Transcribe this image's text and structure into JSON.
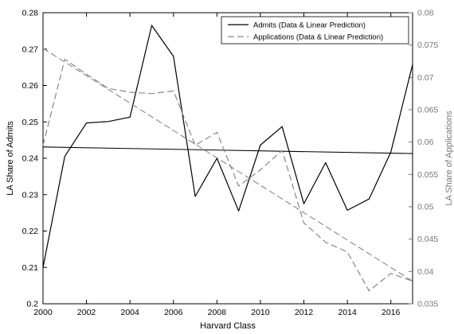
{
  "chart_data": {
    "type": "line",
    "xlabel": "Harvard Class",
    "ylabel_left": "LA Share of Admits",
    "ylabel_right": "LA Share of Applications",
    "xlim": [
      2000,
      2017
    ],
    "ylim_left": [
      0.2,
      0.28
    ],
    "ylim_right": [
      0.035,
      0.08
    ],
    "x_ticks": [
      2000,
      2002,
      2004,
      2006,
      2008,
      2010,
      2012,
      2014,
      2016
    ],
    "y_left_ticks": [
      "0.2",
      "0.21",
      "0.22",
      "0.23",
      "0.24",
      "0.25",
      "0.26",
      "0.27",
      "0.28"
    ],
    "y_right_ticks": [
      "0.035",
      "0.04",
      "0.045",
      "0.05",
      "0.055",
      "0.06",
      "0.065",
      "0.07",
      "0.075",
      "0.08"
    ],
    "grid": false,
    "legend_position": "top-right",
    "series": [
      {
        "name": "Admits (Data & Linear Prediction)",
        "axis": "left",
        "style": "solid",
        "color": "#000000",
        "x": [
          2000,
          2001,
          2002,
          2003,
          2004,
          2005,
          2006,
          2007,
          2008,
          2009,
          2010,
          2011,
          2012,
          2013,
          2014,
          2015,
          2016,
          2017
        ],
        "values": [
          0.21,
          0.2405,
          0.2497,
          0.2501,
          0.2513,
          0.2765,
          0.268,
          0.2295,
          0.24,
          0.2255,
          0.2436,
          0.2487,
          0.2275,
          0.2388,
          0.2257,
          0.2288,
          0.2417,
          0.2658
        ],
        "trend": [
          0.2431,
          0.2413
        ]
      },
      {
        "name": "Applications (Data & Linear Prediction)",
        "axis": "right",
        "style": "dashed",
        "color": "#888888",
        "x": [
          2000,
          2001,
          2002,
          2003,
          2004,
          2005,
          2006,
          2007,
          2008,
          2009,
          2010,
          2011,
          2012,
          2013,
          2014,
          2015,
          2016,
          2017
        ],
        "values": [
          0.0595,
          0.0728,
          0.0705,
          0.0683,
          0.0677,
          0.0675,
          0.0679,
          0.0595,
          0.0615,
          0.0532,
          0.0557,
          0.0587,
          0.0475,
          0.0445,
          0.043,
          0.037,
          0.0397,
          0.0385
        ],
        "trend": [
          0.0745,
          0.0385
        ]
      }
    ]
  }
}
